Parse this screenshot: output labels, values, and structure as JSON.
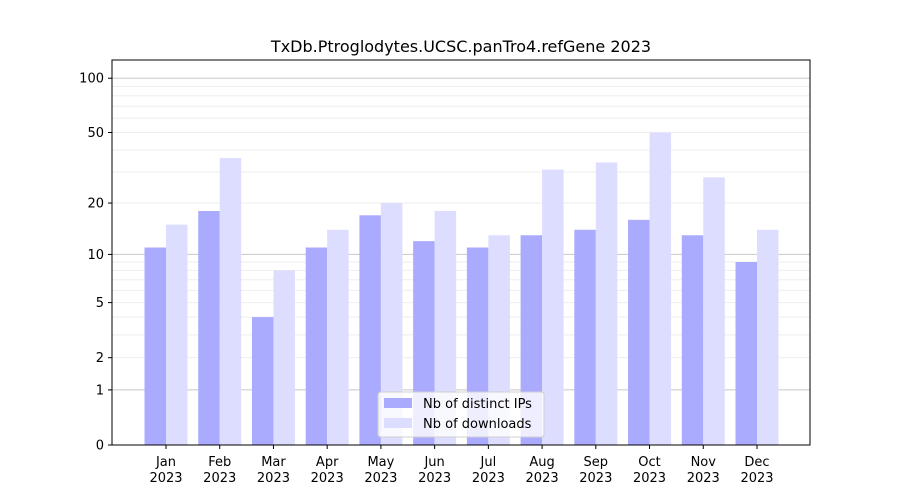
{
  "chart_data": {
    "type": "bar",
    "title": "TxDb.Ptroglodytes.UCSC.panTro4.refGene 2023",
    "xlabel": "",
    "ylabel": "",
    "yscale": "symlog",
    "ylim": [
      0,
      126
    ],
    "yticks": [
      0,
      1,
      2,
      5,
      10,
      20,
      50,
      100
    ],
    "grid": true,
    "legend_position": "bottom-center",
    "categories": [
      "Jan\n2023",
      "Feb\n2023",
      "Mar\n2023",
      "Apr\n2023",
      "May\n2023",
      "Jun\n2023",
      "Jul\n2023",
      "Aug\n2023",
      "Sep\n2023",
      "Oct\n2023",
      "Nov\n2023",
      "Dec\n2023"
    ],
    "series": [
      {
        "name": "Nb of distinct IPs",
        "color": "#aaaaff",
        "values": [
          11,
          18,
          4,
          11,
          17,
          12,
          11,
          13,
          14,
          16,
          13,
          9
        ]
      },
      {
        "name": "Nb of downloads",
        "color": "#ddddff",
        "values": [
          15,
          36,
          8,
          14,
          20,
          18,
          13,
          31,
          34,
          50,
          28,
          14
        ]
      }
    ]
  }
}
